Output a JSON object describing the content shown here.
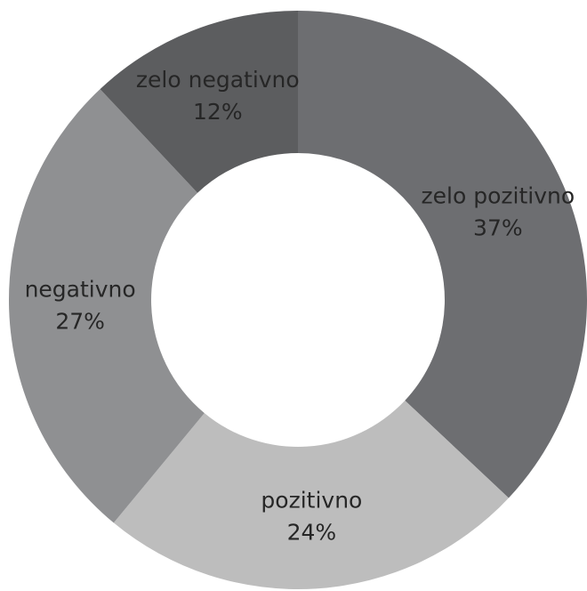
{
  "chart_data": {
    "type": "donut",
    "categories": [
      "zelo pozitivno",
      "pozitivno",
      "negativno",
      "zelo negativno"
    ],
    "values": [
      37,
      24,
      27,
      12
    ],
    "value_labels": [
      "37%",
      "24%",
      "27%",
      "12%"
    ],
    "colors": [
      "#6d6e71",
      "#bdbdbd",
      "#8f9092",
      "#5c5d5f"
    ]
  }
}
